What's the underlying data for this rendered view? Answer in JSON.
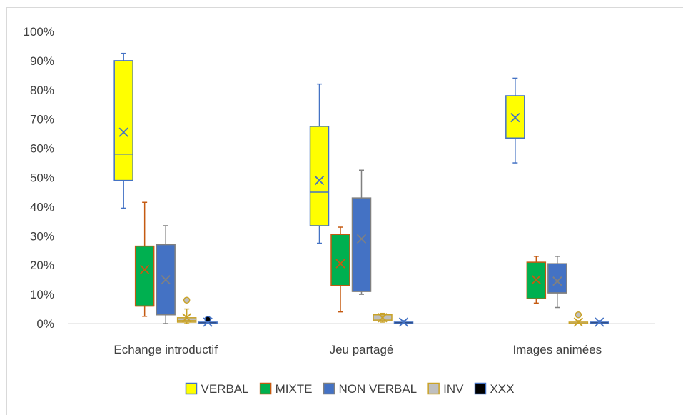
{
  "chart_data": {
    "type": "boxplot",
    "title": "",
    "xlabel": "",
    "ylabel": "",
    "ylim": [
      0,
      100
    ],
    "y_ticks": [
      "0%",
      "10%",
      "20%",
      "30%",
      "40%",
      "50%",
      "60%",
      "70%",
      "80%",
      "90%",
      "100%"
    ],
    "categories": [
      "Echange introductif",
      "Jeu partagé",
      "Images animées"
    ],
    "legend_position": "bottom",
    "gridlines": false,
    "series": [
      {
        "name": "VERBAL",
        "fill": "#ffff00",
        "stroke": "#4472c4",
        "data": [
          {
            "min": 39.5,
            "q1": 49,
            "median": 58,
            "q3": 90,
            "max": 92.5,
            "mean": 65.5,
            "outliers": []
          },
          {
            "min": 27.5,
            "q1": 33.5,
            "median": 45,
            "q3": 67.5,
            "max": 82,
            "mean": 49,
            "outliers": []
          },
          {
            "min": 55,
            "q1": 63.5,
            "median": 63.5,
            "q3": 78,
            "max": 84,
            "mean": 70.5,
            "outliers": []
          }
        ]
      },
      {
        "name": "MIXTE",
        "fill": "#00b050",
        "stroke": "#c55a11",
        "data": [
          {
            "min": 2.5,
            "q1": 6,
            "median": 6,
            "q3": 26.5,
            "max": 41.5,
            "mean": 18.5,
            "outliers": []
          },
          {
            "min": 4,
            "q1": 13,
            "median": 13,
            "q3": 30.5,
            "max": 33,
            "mean": 20.5,
            "outliers": []
          },
          {
            "min": 7,
            "q1": 8.5,
            "median": 8.5,
            "q3": 21,
            "max": 23,
            "mean": 15,
            "outliers": []
          }
        ]
      },
      {
        "name": "NON VERBAL",
        "fill": "#4472c4",
        "stroke": "#808080",
        "data": [
          {
            "min": 0,
            "q1": 3,
            "median": 3,
            "q3": 27,
            "max": 33.5,
            "mean": 15,
            "outliers": []
          },
          {
            "min": 10,
            "q1": 11,
            "median": 11,
            "q3": 43,
            "max": 52.5,
            "mean": 29,
            "outliers": []
          },
          {
            "min": 5.5,
            "q1": 10.5,
            "median": 10.5,
            "q3": 20.5,
            "max": 23,
            "mean": 14.5,
            "outliers": []
          }
        ]
      },
      {
        "name": "INV",
        "fill": "#bfbfbf",
        "stroke": "#c9a227",
        "data": [
          {
            "min": 0,
            "q1": 0.5,
            "median": 1,
            "q3": 2,
            "max": 5,
            "mean": 2,
            "outliers": [
              8
            ]
          },
          {
            "min": 0.5,
            "q1": 1,
            "median": 1.5,
            "q3": 3,
            "max": 3.5,
            "mean": 2,
            "outliers": []
          },
          {
            "min": 0,
            "q1": 0,
            "median": 0,
            "q3": 0.5,
            "max": 1,
            "mean": 0.5,
            "outliers": [
              3
            ]
          }
        ]
      },
      {
        "name": "XXX",
        "fill": "#000000",
        "stroke": "#4472c4",
        "data": [
          {
            "min": 0,
            "q1": 0,
            "median": 0,
            "q3": 0.5,
            "max": 1.5,
            "mean": 0.5,
            "outliers": [
              1.5
            ]
          },
          {
            "min": 0,
            "q1": 0,
            "median": 0,
            "q3": 0.5,
            "max": 1,
            "mean": 0.5,
            "outliers": []
          },
          {
            "min": 0,
            "q1": 0,
            "median": 0,
            "q3": 0.5,
            "max": 1,
            "mean": 0.5,
            "outliers": []
          }
        ]
      }
    ]
  }
}
